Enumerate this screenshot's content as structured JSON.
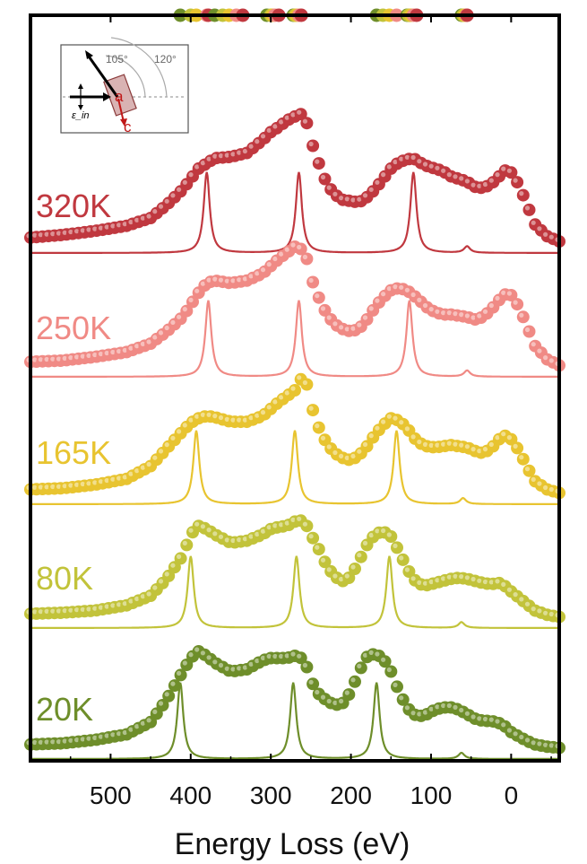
{
  "chart_data": {
    "type": "line",
    "xlabel": "Energy Loss (eV)",
    "ylabel": "",
    "xlim": [
      600,
      -60
    ],
    "x_ticks": [
      500,
      400,
      300,
      200,
      100,
      0
    ],
    "x_tick_labels": [
      "500",
      "400",
      "300",
      "200",
      "100",
      "0"
    ],
    "axis_reversed": true,
    "grid": false,
    "legend": "none",
    "series": [
      {
        "name": "320K",
        "color": "#C0383F",
        "experimental_dots": {
          "x": [
            600,
            560,
            520,
            480,
            450,
            430,
            410,
            400,
            390,
            380,
            370,
            350,
            330,
            310,
            300,
            290,
            280,
            270,
            262,
            255,
            250,
            240,
            230,
            220,
            210,
            200,
            190,
            180,
            170,
            160,
            150,
            140,
            130,
            122,
            115,
            105,
            95,
            85,
            75,
            65,
            55,
            45,
            35,
            25,
            15,
            5,
            0,
            -10,
            -20,
            -30,
            -45,
            -60
          ],
          "y": [
            0.05,
            0.07,
            0.1,
            0.14,
            0.2,
            0.3,
            0.42,
            0.5,
            0.58,
            0.62,
            0.66,
            0.67,
            0.7,
            0.8,
            0.86,
            0.9,
            0.95,
            0.98,
            1.0,
            0.93,
            0.8,
            0.62,
            0.46,
            0.38,
            0.34,
            0.33,
            0.32,
            0.36,
            0.42,
            0.5,
            0.58,
            0.63,
            0.65,
            0.66,
            0.63,
            0.6,
            0.58,
            0.56,
            0.52,
            0.5,
            0.48,
            0.44,
            0.43,
            0.46,
            0.52,
            0.58,
            0.55,
            0.45,
            0.3,
            0.15,
            0.06,
            0.02
          ]
        },
        "line_peaks": [
          380,
          265,
          122,
          55
        ]
      },
      {
        "name": "250K",
        "color": "#F08A85",
        "experimental_dots": {
          "x": [
            600,
            560,
            520,
            480,
            450,
            430,
            410,
            400,
            390,
            380,
            370,
            350,
            330,
            310,
            300,
            290,
            280,
            270,
            262,
            255,
            250,
            240,
            230,
            220,
            210,
            200,
            190,
            180,
            170,
            160,
            150,
            140,
            130,
            122,
            115,
            105,
            95,
            85,
            75,
            65,
            55,
            45,
            35,
            25,
            15,
            5,
            0,
            -10,
            -20,
            -30,
            -45,
            -60
          ],
          "y": [
            0.05,
            0.06,
            0.09,
            0.13,
            0.2,
            0.3,
            0.42,
            0.52,
            0.62,
            0.7,
            0.72,
            0.7,
            0.72,
            0.78,
            0.84,
            0.9,
            0.95,
            1.0,
            0.98,
            0.9,
            0.75,
            0.58,
            0.44,
            0.36,
            0.32,
            0.3,
            0.32,
            0.4,
            0.5,
            0.58,
            0.64,
            0.66,
            0.64,
            0.6,
            0.56,
            0.5,
            0.46,
            0.44,
            0.44,
            0.43,
            0.42,
            0.4,
            0.42,
            0.48,
            0.56,
            0.62,
            0.6,
            0.5,
            0.34,
            0.18,
            0.07,
            0.02
          ]
        },
        "line_peaks": [
          378,
          265,
          127,
          55
        ]
      },
      {
        "name": "165K",
        "color": "#E8C430",
        "experimental_dots": {
          "x": [
            600,
            560,
            520,
            480,
            450,
            430,
            410,
            400,
            390,
            380,
            370,
            350,
            330,
            310,
            300,
            290,
            280,
            270,
            262,
            255,
            250,
            240,
            230,
            220,
            210,
            200,
            190,
            180,
            170,
            160,
            150,
            140,
            130,
            122,
            115,
            105,
            95,
            85,
            75,
            65,
            55,
            45,
            35,
            25,
            15,
            5,
            0,
            -10,
            -20,
            -30,
            -45,
            -60
          ],
          "y": [
            0.05,
            0.06,
            0.09,
            0.14,
            0.25,
            0.4,
            0.55,
            0.62,
            0.66,
            0.68,
            0.67,
            0.63,
            0.63,
            0.68,
            0.74,
            0.8,
            0.85,
            0.9,
            1.0,
            0.95,
            0.78,
            0.58,
            0.44,
            0.36,
            0.32,
            0.3,
            0.34,
            0.42,
            0.52,
            0.6,
            0.66,
            0.64,
            0.58,
            0.5,
            0.45,
            0.42,
            0.41,
            0.42,
            0.43,
            0.42,
            0.41,
            0.38,
            0.36,
            0.4,
            0.48,
            0.52,
            0.48,
            0.38,
            0.24,
            0.12,
            0.05,
            0.02
          ]
        },
        "line_peaks": [
          393,
          270,
          143,
          60
        ]
      },
      {
        "name": "80K",
        "color": "#C2C33A",
        "experimental_dots": {
          "x": [
            600,
            560,
            520,
            480,
            450,
            430,
            410,
            400,
            390,
            380,
            370,
            350,
            330,
            310,
            300,
            290,
            280,
            270,
            262,
            255,
            250,
            240,
            230,
            220,
            210,
            200,
            190,
            180,
            170,
            160,
            150,
            140,
            130,
            122,
            115,
            105,
            95,
            85,
            75,
            65,
            55,
            45,
            35,
            25,
            15,
            5,
            0,
            -10,
            -20,
            -30,
            -45,
            -60
          ],
          "y": [
            0.05,
            0.06,
            0.08,
            0.13,
            0.22,
            0.38,
            0.6,
            0.8,
            0.88,
            0.85,
            0.8,
            0.72,
            0.74,
            0.8,
            0.85,
            0.87,
            0.88,
            0.92,
            0.93,
            0.88,
            0.8,
            0.66,
            0.5,
            0.4,
            0.36,
            0.4,
            0.55,
            0.7,
            0.8,
            0.83,
            0.78,
            0.64,
            0.48,
            0.38,
            0.33,
            0.32,
            0.34,
            0.36,
            0.38,
            0.39,
            0.38,
            0.36,
            0.34,
            0.33,
            0.34,
            0.3,
            0.26,
            0.2,
            0.14,
            0.08,
            0.04,
            0.02
          ]
        },
        "line_peaks": [
          400,
          268,
          152,
          62
        ]
      },
      {
        "name": "20K",
        "color": "#6E8E2A",
        "experimental_dots": {
          "x": [
            600,
            560,
            520,
            480,
            450,
            430,
            410,
            400,
            390,
            380,
            370,
            350,
            330,
            310,
            300,
            290,
            280,
            270,
            262,
            255,
            250,
            240,
            230,
            220,
            210,
            200,
            190,
            180,
            170,
            160,
            150,
            140,
            130,
            122,
            115,
            105,
            95,
            85,
            75,
            65,
            55,
            45,
            35,
            25,
            15,
            5,
            0,
            -10,
            -20,
            -30,
            -45,
            -60
          ],
          "y": [
            0.05,
            0.06,
            0.09,
            0.14,
            0.25,
            0.45,
            0.7,
            0.82,
            0.88,
            0.84,
            0.78,
            0.7,
            0.72,
            0.8,
            0.82,
            0.82,
            0.82,
            0.84,
            0.82,
            0.74,
            0.62,
            0.5,
            0.44,
            0.4,
            0.42,
            0.52,
            0.7,
            0.83,
            0.86,
            0.82,
            0.7,
            0.52,
            0.38,
            0.32,
            0.3,
            0.32,
            0.36,
            0.38,
            0.38,
            0.36,
            0.32,
            0.28,
            0.26,
            0.26,
            0.24,
            0.2,
            0.16,
            0.12,
            0.08,
            0.05,
            0.03,
            0.02
          ]
        },
        "line_peaks": [
          413,
          272,
          168,
          62
        ]
      }
    ],
    "inset": {
      "angle_labels": [
        "105°",
        "120°"
      ],
      "axis_labels": [
        "a",
        "c"
      ],
      "polarization_label": "ε_in"
    },
    "top_markers": {
      "colors": [
        "#6E8E2A",
        "#C2C33A",
        "#E8C430",
        "#F08A85",
        "#C0383F"
      ],
      "groups": [
        {
          "x": [
            413,
            400,
            393,
            380,
            378
          ]
        },
        {
          "x": [
            370,
            360,
            352,
            343,
            335
          ]
        },
        {
          "x": [
            305,
            300,
            298,
            295,
            290
          ]
        },
        {
          "x": [
            272,
            270,
            268,
            265,
            262
          ]
        },
        {
          "x": [
            168,
            160,
            152,
            143,
            127
          ]
        },
        {
          "x": [
            130,
            128,
            125,
            122,
            118
          ]
        },
        {
          "x": [
            62,
            60,
            58,
            56,
            55
          ]
        }
      ]
    }
  }
}
